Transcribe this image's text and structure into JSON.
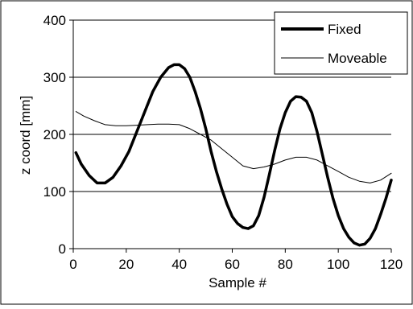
{
  "chart_data": {
    "type": "line",
    "title": "",
    "xlabel": "Sample #",
    "ylabel": "z coord [mm]",
    "xlim": [
      0,
      120
    ],
    "ylim": [
      0,
      400
    ],
    "x_ticks": [
      0,
      20,
      40,
      60,
      80,
      100,
      120
    ],
    "y_ticks": [
      0,
      100,
      200,
      300,
      400
    ],
    "grid": "horizontal",
    "legend_position": "top-right",
    "series": [
      {
        "name": "Fixed",
        "color": "#000000",
        "style": "thick",
        "x": [
          1,
          3,
          6,
          9,
          12,
          15,
          18,
          21,
          24,
          27,
          30,
          33,
          36,
          38,
          40,
          42,
          44,
          46,
          48,
          50,
          52,
          54,
          56,
          58,
          60,
          62,
          64,
          66,
          68,
          70,
          72,
          74,
          76,
          78,
          80,
          82,
          84,
          86,
          88,
          90,
          92,
          94,
          96,
          98,
          100,
          102,
          104,
          106,
          108,
          110,
          112,
          114,
          116,
          118,
          120
        ],
        "values": [
          168,
          148,
          128,
          115,
          115,
          125,
          145,
          170,
          205,
          240,
          275,
          300,
          317,
          322,
          322,
          315,
          300,
          275,
          245,
          210,
          170,
          135,
          105,
          78,
          56,
          44,
          37,
          35,
          40,
          58,
          90,
          130,
          172,
          210,
          238,
          258,
          266,
          265,
          258,
          238,
          205,
          165,
          125,
          88,
          58,
          35,
          20,
          10,
          6,
          8,
          18,
          35,
          60,
          88,
          120
        ]
      },
      {
        "name": "Moveable",
        "color": "#000000",
        "style": "thin",
        "x": [
          1,
          4,
          8,
          12,
          16,
          20,
          24,
          28,
          32,
          36,
          40,
          44,
          48,
          52,
          56,
          60,
          64,
          68,
          72,
          76,
          80,
          84,
          88,
          92,
          96,
          100,
          104,
          108,
          112,
          116,
          120
        ],
        "values": [
          240,
          232,
          224,
          217,
          215,
          215,
          216,
          217,
          218,
          218,
          217,
          210,
          200,
          190,
          175,
          160,
          145,
          140,
          143,
          148,
          155,
          160,
          160,
          155,
          145,
          135,
          125,
          118,
          115,
          120,
          132
        ]
      }
    ]
  }
}
